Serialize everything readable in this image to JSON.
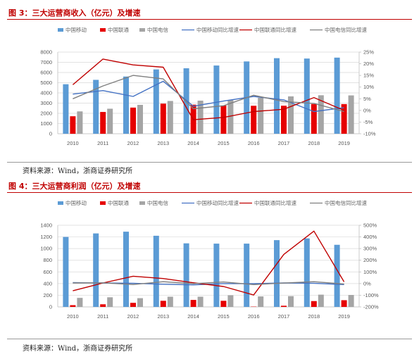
{
  "charts": [
    {
      "title": "图 3：三大运营商收入（亿元）及增速",
      "source": "资料来源：Wind，浙商证券研究所"
    },
    {
      "title": "图 4：三大运营商利润（亿元）及增速",
      "source": "资料来源：Wind，浙商证券研究所"
    }
  ],
  "chart_data": [
    {
      "type": "bar",
      "categories": [
        "2010",
        "2011",
        "2012",
        "2013",
        "2014",
        "2015",
        "2016",
        "2017",
        "2018",
        "2019"
      ],
      "series": [
        {
          "name": "中国移动",
          "kind": "bar",
          "axis": "left",
          "color": "#5b9bd5",
          "values": [
            4852,
            5280,
            5604,
            6302,
            6414,
            6684,
            7084,
            7405,
            7368,
            7459
          ]
        },
        {
          "name": "中国联通",
          "kind": "bar",
          "axis": "left",
          "color": "#e60000",
          "values": [
            1713,
            2134,
            2562,
            2950,
            2848,
            2770,
            2742,
            2748,
            2909,
            2905
          ]
        },
        {
          "name": "中国电信",
          "kind": "bar",
          "axis": "left",
          "color": "#a5a5a5",
          "values": [
            2191,
            2452,
            2831,
            3211,
            3244,
            3313,
            3523,
            3662,
            3771,
            3757
          ]
        },
        {
          "name": "中国移动同比增速",
          "kind": "line",
          "axis": "right",
          "color": "#4472c4",
          "values": [
            7,
            8.5,
            6,
            12.5,
            1.8,
            4,
            6,
            4.5,
            -0.5,
            1.2
          ]
        },
        {
          "name": "中国联通同比增速",
          "kind": "line",
          "axis": "right",
          "color": "#c00000",
          "values": [
            11,
            22,
            19.5,
            18.5,
            -4,
            -3,
            -0.5,
            0.5,
            5.5,
            0
          ]
        },
        {
          "name": "中国电信同比增速",
          "kind": "line",
          "axis": "right",
          "color": "#7f7f7f",
          "values": [
            5,
            10.5,
            15,
            13.5,
            0.7,
            2,
            6.5,
            3.8,
            3,
            -0.5
          ]
        }
      ],
      "left_ticks": [
        "0",
        "1000",
        "2000",
        "3000",
        "4000",
        "5000",
        "6000",
        "7000",
        "8000"
      ],
      "right_ticks": [
        "-10%",
        "-5%",
        "0%",
        "5%",
        "10%",
        "15%",
        "20%",
        "25%"
      ],
      "ylim": [
        0,
        8000
      ],
      "y2lim": [
        -10,
        25
      ]
    },
    {
      "type": "bar",
      "categories": [
        "2010",
        "2011",
        "2012",
        "2013",
        "2014",
        "2015",
        "2016",
        "2017",
        "2018",
        "2019"
      ],
      "series": [
        {
          "name": "中国移动",
          "kind": "bar",
          "axis": "left",
          "color": "#5b9bd5",
          "values": [
            1200,
            1260,
            1290,
            1220,
            1090,
            1085,
            1085,
            1145,
            1175,
            1065
          ]
        },
        {
          "name": "中国联通",
          "kind": "bar",
          "axis": "left",
          "color": "#e60000",
          "values": [
            30,
            45,
            70,
            105,
            120,
            105,
            5,
            20,
            100,
            115
          ]
        },
        {
          "name": "中国电信",
          "kind": "bar",
          "axis": "left",
          "color": "#a5a5a5",
          "values": [
            155,
            165,
            150,
            175,
            175,
            200,
            180,
            185,
            210,
            205
          ]
        },
        {
          "name": "中国移动同比增速",
          "kind": "line",
          "axis": "right",
          "color": "#4472c4",
          "values": [
            8,
            5,
            2.5,
            -5.5,
            -11,
            -0.5,
            0,
            5.5,
            2.5,
            -9
          ]
        },
        {
          "name": "中国联通同比增速",
          "kind": "line",
          "axis": "right",
          "color": "#c00000",
          "values": [
            -62,
            5,
            63,
            43,
            7,
            -25,
            -98,
            250,
            450,
            15
          ]
        },
        {
          "name": "中国电信同比增速",
          "kind": "line",
          "axis": "right",
          "color": "#7f7f7f",
          "values": [
            5,
            6.5,
            -8,
            16,
            0,
            13.5,
            -9,
            4.5,
            16,
            -3
          ]
        }
      ],
      "left_ticks": [
        "0",
        "200",
        "400",
        "600",
        "800",
        "1000",
        "1200",
        "1400"
      ],
      "right_ticks": [
        "-200%",
        "-100%",
        "0%",
        "100%",
        "200%",
        "300%",
        "400%",
        "500%"
      ],
      "ylim": [
        0,
        1400
      ],
      "y2lim": [
        -200,
        500
      ]
    }
  ]
}
